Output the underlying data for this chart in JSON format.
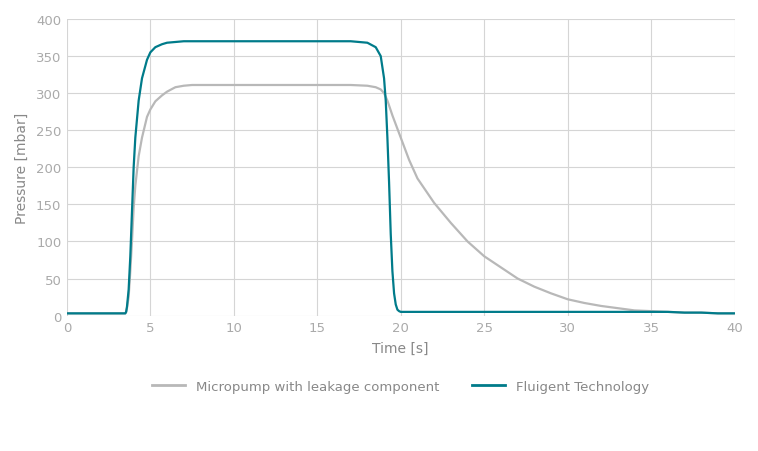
{
  "title": "",
  "xlabel": "Time [s]",
  "ylabel": "Pressure [mbar]",
  "xlim": [
    0,
    40
  ],
  "ylim": [
    0,
    400
  ],
  "xticks": [
    0,
    5,
    10,
    15,
    20,
    25,
    30,
    35,
    40
  ],
  "yticks": [
    0,
    50,
    100,
    150,
    200,
    250,
    300,
    350,
    400
  ],
  "background_color": "#ffffff",
  "grid_color": "#d5d5d5",
  "micropump_color": "#b8b8b8",
  "fluigent_color": "#007b8a",
  "legend_labels": [
    "Micropump with leakage component",
    "Fluigent Technology"
  ],
  "micropump_x": [
    0,
    3.5,
    3.55,
    3.6,
    3.7,
    3.8,
    3.9,
    4.0,
    4.1,
    4.3,
    4.5,
    4.8,
    5.0,
    5.3,
    5.7,
    6.0,
    6.5,
    7.0,
    7.5,
    8.0,
    9.0,
    10.0,
    12.0,
    14.0,
    15.0,
    16.0,
    17.0,
    18.0,
    18.5,
    18.8,
    19.0,
    19.2,
    19.5,
    20.0,
    20.5,
    21.0,
    22.0,
    23.0,
    24.0,
    25.0,
    26.0,
    27.0,
    28.0,
    29.0,
    30.0,
    31.0,
    32.0,
    33.0,
    34.0,
    35.0,
    36.0,
    37.0,
    38.0,
    39.0,
    40.0
  ],
  "micropump_y": [
    3,
    3,
    5,
    10,
    25,
    60,
    100,
    145,
    175,
    215,
    240,
    268,
    278,
    289,
    297,
    302,
    308,
    310,
    311,
    311,
    311,
    311,
    311,
    311,
    311,
    311,
    311,
    310,
    308,
    305,
    300,
    290,
    270,
    240,
    210,
    185,
    152,
    125,
    100,
    80,
    65,
    50,
    39,
    30,
    22,
    17,
    13,
    10,
    7,
    6,
    5,
    4,
    4,
    3,
    3
  ],
  "fluigent_x": [
    0,
    3.5,
    3.55,
    3.6,
    3.7,
    3.8,
    3.9,
    4.0,
    4.1,
    4.3,
    4.5,
    4.8,
    5.0,
    5.3,
    5.7,
    6.0,
    6.5,
    7.0,
    7.5,
    8.0,
    9.0,
    10.0,
    12.0,
    14.0,
    15.0,
    16.0,
    17.0,
    18.0,
    18.5,
    18.8,
    19.0,
    19.1,
    19.2,
    19.3,
    19.4,
    19.5,
    19.6,
    19.7,
    19.8,
    19.9,
    20.0,
    20.2,
    20.5,
    21.0,
    22.0,
    35.0,
    36.0,
    37.0,
    38.0,
    39.0,
    40.0
  ],
  "fluigent_y": [
    3,
    3,
    5,
    12,
    35,
    80,
    140,
    200,
    240,
    290,
    320,
    345,
    355,
    362,
    366,
    368,
    369,
    370,
    370,
    370,
    370,
    370,
    370,
    370,
    370,
    370,
    370,
    368,
    362,
    350,
    320,
    290,
    240,
    180,
    110,
    60,
    30,
    15,
    8,
    6,
    5,
    5,
    5,
    5,
    5,
    5,
    5,
    4,
    4,
    3,
    3
  ]
}
